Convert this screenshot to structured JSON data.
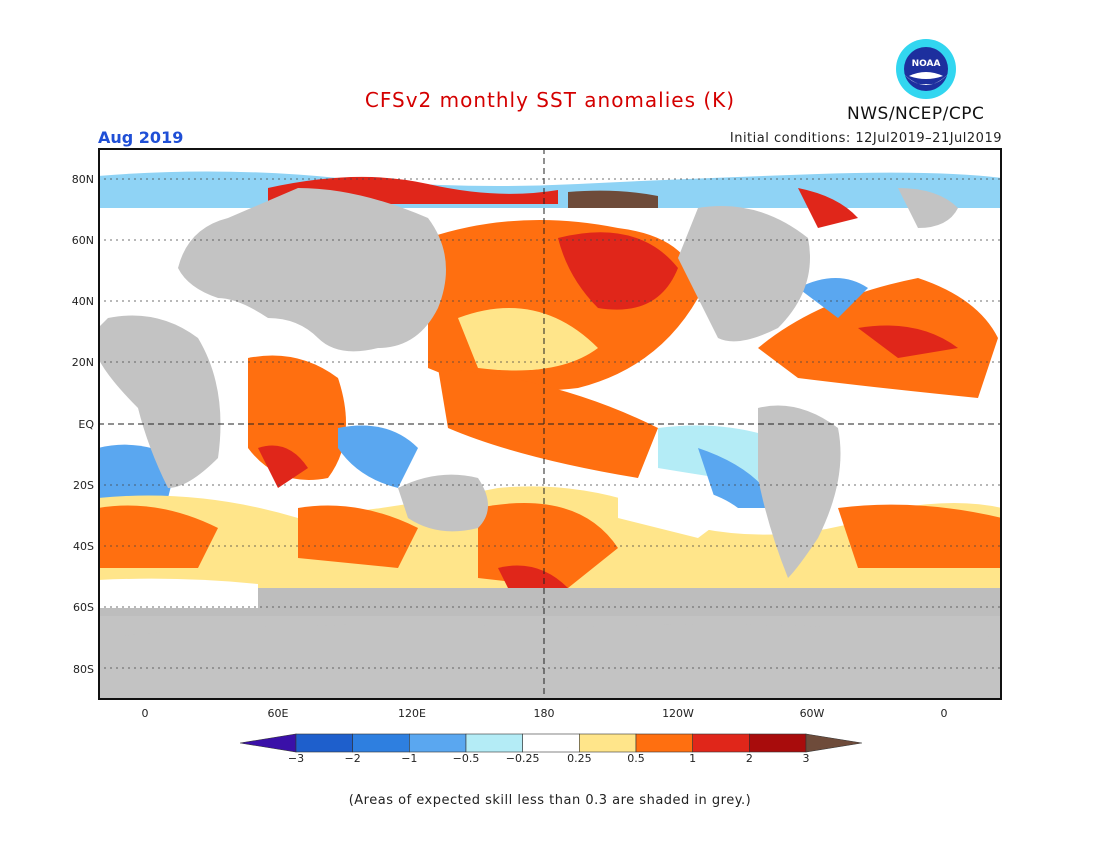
{
  "title": "CFSv2 monthly SST anomalies (K)",
  "valid_month": "Aug 2019",
  "initial_conditions": "Initial conditions: 12Jul2019–21Jul2019",
  "agency": "NWS/NCEP/CPC",
  "logo_text": "NOAA",
  "footnote": "(Areas of expected skill less than 0.3 are shaded in grey.)",
  "lat_labels": [
    "80N",
    "60N",
    "40N",
    "20N",
    "EQ",
    "20S",
    "40S",
    "60S",
    "80S"
  ],
  "lon_labels": [
    "0",
    "60E",
    "120E",
    "180",
    "120W",
    "60W",
    "0"
  ],
  "colorbar": {
    "labels": [
      "−3",
      "−2",
      "−1",
      "−0.5",
      "−0.25",
      "0.25",
      "0.5",
      "1",
      "2",
      "3"
    ],
    "colors": [
      "#3a10a8",
      "#1e5fcc",
      "#2e7fe0",
      "#5aa7f0",
      "#b4ecf6",
      "#ffffff",
      "#ffe58a",
      "#ff6f10",
      "#e0261a",
      "#a80c0c",
      "#6e4b3a"
    ]
  },
  "colors": {
    "land": "#c3c3c3",
    "skill_grey": "#bdbdbd"
  }
}
